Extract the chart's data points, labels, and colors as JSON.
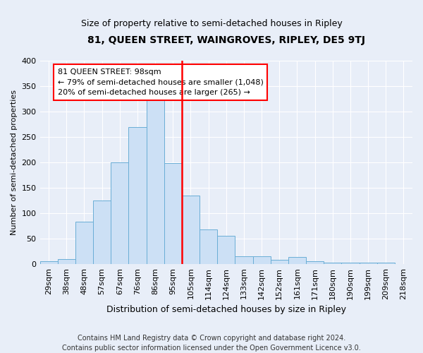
{
  "title": "81, QUEEN STREET, WAINGROVES, RIPLEY, DE5 9TJ",
  "subtitle": "Size of property relative to semi-detached houses in Ripley",
  "xlabel": "Distribution of semi-detached houses by size in Ripley",
  "ylabel": "Number of semi-detached properties",
  "categories": [
    "29sqm",
    "38sqm",
    "48sqm",
    "57sqm",
    "67sqm",
    "76sqm",
    "86sqm",
    "95sqm",
    "105sqm",
    "114sqm",
    "124sqm",
    "133sqm",
    "142sqm",
    "152sqm",
    "161sqm",
    "171sqm",
    "180sqm",
    "190sqm",
    "199sqm",
    "209sqm",
    "218sqm"
  ],
  "bar_heights": [
    5,
    10,
    83,
    125,
    200,
    270,
    325,
    198,
    135,
    68,
    55,
    15,
    15,
    8,
    13,
    5,
    2,
    2,
    2,
    3,
    0
  ],
  "bar_color": "#cce0f5",
  "bar_edge_color": "#6aaed6",
  "property_sqm": 98,
  "annotation_text": "81 QUEEN STREET: 98sqm\n← 79% of semi-detached houses are smaller (1,048)\n20% of semi-detached houses are larger (265) →",
  "annotation_box_color": "white",
  "annotation_box_edge_color": "red",
  "ylim": [
    0,
    400
  ],
  "yticks": [
    0,
    50,
    100,
    150,
    200,
    250,
    300,
    350,
    400
  ],
  "footer_line1": "Contains HM Land Registry data © Crown copyright and database right 2024.",
  "footer_line2": "Contains public sector information licensed under the Open Government Licence v3.0.",
  "bg_color": "#e8eef8",
  "grid_color": "white",
  "title_fontsize": 10,
  "subtitle_fontsize": 9,
  "annotation_fontsize": 8,
  "footer_fontsize": 7,
  "ylabel_fontsize": 8,
  "xlabel_fontsize": 9
}
